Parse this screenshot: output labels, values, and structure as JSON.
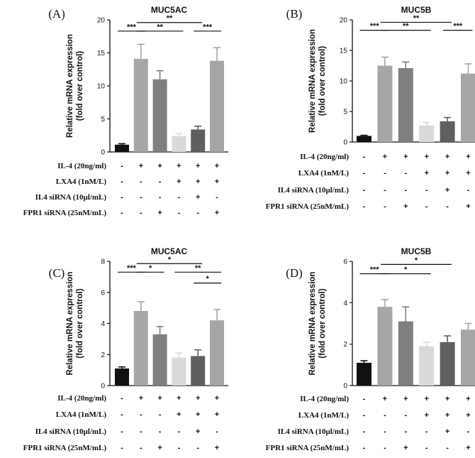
{
  "chart_data": [
    {
      "type": "bar",
      "panel_label": "(A)",
      "title": "MUC5AC",
      "ylabel_lines": [
        "Relative mRNA expression",
        "(fold over control)"
      ],
      "ylim": [
        0,
        20
      ],
      "yticks": [
        "0",
        "5",
        "10",
        "15",
        "20"
      ],
      "bar_colors": [
        "#111111",
        "#a6a6a6",
        "#7f7f7f",
        "#d9d9d9",
        "#5f5f5f",
        "#a6a6a6"
      ],
      "values": [
        1.1,
        14.1,
        11.0,
        2.4,
        3.4,
        13.8
      ],
      "errors": [
        0.15,
        2.2,
        1.3,
        0.4,
        0.5,
        2.0
      ],
      "significance": [
        {
          "from": 0,
          "to": 1,
          "y": 18.3,
          "label": "***"
        },
        {
          "from": 1,
          "to": 3,
          "y": 18.3,
          "label": "**"
        },
        {
          "from": 1,
          "to": 4,
          "y": 19.6,
          "label": "**"
        },
        {
          "from": 4,
          "to": 5,
          "y": 18.3,
          "label": "***"
        }
      ],
      "rows": [
        {
          "label": "IL-4 (20ng/ml)",
          "values": [
            "-",
            "+",
            "+",
            "+",
            "+",
            "+"
          ]
        },
        {
          "label": "LXA4 (1nM/L)",
          "values": [
            "-",
            "-",
            "-",
            "+",
            "+",
            "+"
          ]
        },
        {
          "label": "IL4 siRNA (10μl/mL)",
          "values": [
            "-",
            "-",
            "-",
            "-",
            "+",
            "-"
          ]
        },
        {
          "label": "FPR1 siRNA (25nM/mL)",
          "values": [
            "-",
            "-",
            "+",
            "-",
            "-",
            "+"
          ]
        }
      ]
    },
    {
      "type": "bar",
      "panel_label": "(B)",
      "title": "MUC5B",
      "ylabel_lines": [
        "Relative mRNA expression",
        "(fold over control)"
      ],
      "ylim": [
        0,
        20
      ],
      "yticks": [
        "0",
        "5",
        "10",
        "15",
        "20"
      ],
      "bar_colors": [
        "#111111",
        "#a6a6a6",
        "#7f7f7f",
        "#d9d9d9",
        "#5f5f5f",
        "#a6a6a6"
      ],
      "values": [
        1.0,
        12.5,
        12.1,
        2.7,
        3.4,
        11.2
      ],
      "errors": [
        0.1,
        1.4,
        1.0,
        0.5,
        0.6,
        1.6
      ],
      "significance": [
        {
          "from": 0,
          "to": 1,
          "y": 18.3,
          "label": "***"
        },
        {
          "from": 1,
          "to": 3,
          "y": 18.3,
          "label": "**"
        },
        {
          "from": 1,
          "to": 4,
          "y": 19.6,
          "label": "**"
        },
        {
          "from": 4,
          "to": 5,
          "y": 18.3,
          "label": "***"
        }
      ],
      "rows": [
        {
          "label": "IL-4 (20ng/ml)",
          "values": [
            "-",
            "+",
            "+",
            "+",
            "+",
            "+"
          ]
        },
        {
          "label": "LXA4 (1nM/L)",
          "values": [
            "-",
            "-",
            "-",
            "+",
            "+",
            "+"
          ]
        },
        {
          "label": "IL4 siRNA (10μl/mL)",
          "values": [
            "-",
            "-",
            "-",
            "-",
            "+",
            "-"
          ]
        },
        {
          "label": "FPR1 siRNA (25nM/mL)",
          "values": [
            "-",
            "-",
            "+",
            "-",
            "-",
            "+"
          ]
        }
      ]
    },
    {
      "type": "bar",
      "panel_label": "(C)",
      "title": "MUC5AC",
      "ylabel_lines": [
        "Relative mRNA expression",
        "(fold over control)"
      ],
      "ylim": [
        0,
        8
      ],
      "yticks": [
        "0",
        "2",
        "4",
        "6",
        "8"
      ],
      "bar_colors": [
        "#111111",
        "#a6a6a6",
        "#7f7f7f",
        "#d9d9d9",
        "#5f5f5f",
        "#a6a6a6"
      ],
      "values": [
        1.1,
        4.8,
        3.3,
        1.8,
        1.9,
        4.2
      ],
      "errors": [
        0.1,
        0.6,
        0.5,
        0.3,
        0.4,
        0.7
      ],
      "significance": [
        {
          "from": 0,
          "to": 1,
          "y": 7.3,
          "label": "***"
        },
        {
          "from": 1,
          "to": 2,
          "y": 7.3,
          "label": "*"
        },
        {
          "from": 1,
          "to": 4,
          "y": 7.85,
          "label": "*"
        },
        {
          "from": 3,
          "to": 5,
          "y": 7.3,
          "label": "**"
        },
        {
          "from": 4,
          "to": 5,
          "y": 6.6,
          "label": "*"
        }
      ],
      "rows": [
        {
          "label": "IL-4 (20ng/ml)",
          "values": [
            "-",
            "+",
            "+",
            "+",
            "+",
            "+"
          ]
        },
        {
          "label": "LXA4 (1nM/L)",
          "values": [
            "-",
            "-",
            "-",
            "+",
            "+",
            "+"
          ]
        },
        {
          "label": "IL4 siRNA (10μl/mL)",
          "values": [
            "-",
            "-",
            "-",
            "-",
            "+",
            "-"
          ]
        },
        {
          "label": "FPR1 siRNA (25nM/mL)",
          "values": [
            "-",
            "-",
            "+",
            "-",
            "-",
            "+"
          ]
        }
      ]
    },
    {
      "type": "bar",
      "panel_label": "(D)",
      "title": "MUC5B",
      "ylabel_lines": [
        "Relative mRNA expression",
        "(fold over control)"
      ],
      "ylim": [
        0,
        6
      ],
      "yticks": [
        "0",
        "2",
        "4",
        "6"
      ],
      "bar_colors": [
        "#111111",
        "#a6a6a6",
        "#7f7f7f",
        "#d9d9d9",
        "#5f5f5f",
        "#a6a6a6"
      ],
      "values": [
        1.1,
        3.8,
        3.1,
        1.9,
        2.1,
        2.7
      ],
      "errors": [
        0.1,
        0.35,
        0.7,
        0.2,
        0.3,
        0.3
      ],
      "significance": [
        {
          "from": 0,
          "to": 1,
          "y": 5.4,
          "label": "***"
        },
        {
          "from": 1,
          "to": 3,
          "y": 5.4,
          "label": "*"
        },
        {
          "from": 1,
          "to": 4,
          "y": 5.85,
          "label": "*"
        }
      ],
      "rows": [
        {
          "label": "IL-4 (20ng/ml)",
          "values": [
            "-",
            "+",
            "+",
            "+",
            "+",
            "+"
          ]
        },
        {
          "label": "LXA4 (1nM/L)",
          "values": [
            "-",
            "-",
            "-",
            "+",
            "+",
            "+"
          ]
        },
        {
          "label": "IL4 siRNA (10μl/mL)",
          "values": [
            "-",
            "-",
            "-",
            "-",
            "+",
            "-"
          ]
        },
        {
          "label": "FPR1 siRNA (25nM/mL)",
          "values": [
            "-",
            "-",
            "+",
            "-",
            "-",
            "+"
          ]
        }
      ]
    }
  ]
}
